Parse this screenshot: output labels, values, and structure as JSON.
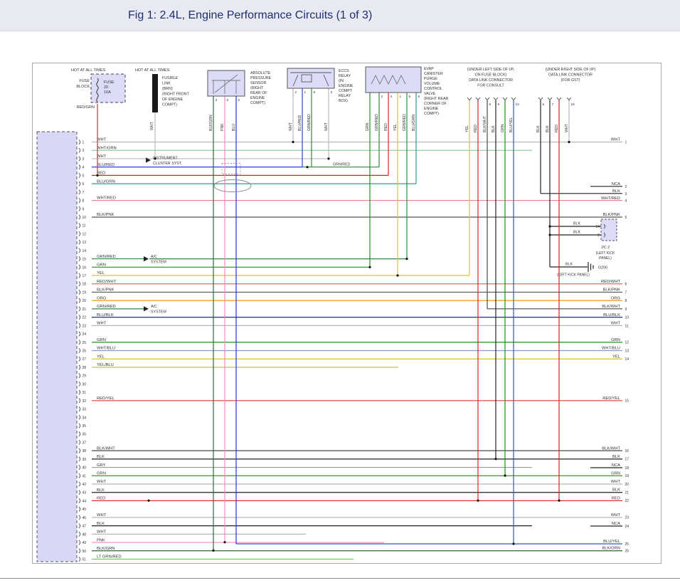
{
  "header": {
    "title": "Fig 1: 2.4L, Engine Performance Circuits (1 of 3)"
  },
  "wire_colors": {
    "WHT": "#b8b8b8",
    "WHT/GRN": "#9ccc9c",
    "WHT/RED": "#d98989",
    "WHT/BLU": "#8899dd",
    "BLU": "#2233dd",
    "BLU/RED": "#3344cc",
    "BLU/GRN": "#2a9d8f",
    "BLU/BLK": "#2a2a99",
    "BLU/YEL": "#3355cc",
    "RED": "#dd2222",
    "RED/WHT": "#e06666",
    "RED/YEL": "#dd4433",
    "RED/GRN": "#cc3333",
    "GRN": "#1f8f1f",
    "GRN/RED": "#2e8b3a",
    "LT GRN/RED": "#66cc66",
    "YEL": "#ddcc00",
    "YEL/BLU": "#bdbd44",
    "BLK": "#222222",
    "BLK/PNK": "#555555",
    "BLK/WHT": "#4a4a4a",
    "BLK/GRN": "#336633",
    "GRY": "#999999",
    "PNK": "#ee88bb",
    "ORG": "#e69500",
    "NCA": "#222222"
  },
  "labels": {
    "hot": "HOT AT ALL TIMES",
    "fuse_block_lines": [
      "FUSE",
      "BLOCK"
    ],
    "fuse_lines": [
      "FUSE",
      "20",
      "10A"
    ],
    "fuse_wire": "RED/GRN",
    "fusible_link_lines": [
      "FUSIBLE",
      "LINK",
      "(BRN)",
      "(RIGHT FRONT",
      "OF ENGINE",
      "COMPT)"
    ],
    "fusible_wire": "WHT",
    "instrument_lines": [
      "INSTRUMENT",
      "CLUSTER SYST."
    ],
    "ac_lines": [
      "A/C",
      "SYSTEM"
    ],
    "sensor_lines": [
      "ABSOLUTE",
      "PRESSURE",
      "SENSOR",
      "(RIGHT",
      "REAR OF",
      "ENGINE",
      "COMPT)"
    ],
    "relay_lines": [
      "ECCS",
      "RELAY",
      "(IN",
      "ENGINE",
      "COMPT",
      "RELAY",
      "BOX)"
    ],
    "evap_lines": [
      "EVAP",
      "CANISTER",
      "PURGE",
      "VOLUME",
      "CONTROL",
      "VALVE",
      "(RIGHT REAR",
      "CORNER OF",
      "ENGINE",
      "COMPT)"
    ],
    "consult_lines": [
      "(UNDER LEFT SIDE OF I/P,",
      "ON FUSE BLOCK)",
      "DATA LINK CONNECTOR",
      "FOR CONSULT"
    ],
    "gst_lines": [
      "(UNDER RIGHT SIDE OF I/P)",
      "DATA LINK CONNECTOR",
      "(FOR GST)"
    ],
    "inline_grn_red": "GRN/RED",
    "jc2": {
      "wire_top": "BLK",
      "pin_top": "14",
      "wire_bot": "BLK",
      "pin_bot": "2",
      "name": "J/C 2",
      "location_lines": [
        "(LEFT KICK",
        "PANEL)"
      ]
    },
    "ground": {
      "wire": "BLK",
      "name": "G200",
      "location": "(LEFT KICK PANEL)"
    }
  },
  "left_connector": {
    "pins": [
      {
        "n": "1",
        "label": "WHT"
      },
      {
        "n": "2",
        "label": "WHT/GRN"
      },
      {
        "n": "3",
        "label": "WHT"
      },
      {
        "n": "4",
        "label": "BLU/RED"
      },
      {
        "n": "5",
        "label": "RED"
      },
      {
        "n": "6",
        "label": "BLU/GRN"
      },
      {
        "n": "7",
        "label": ""
      },
      {
        "n": "8",
        "label": "WHT/RED"
      },
      {
        "n": "9",
        "label": ""
      },
      {
        "n": "10",
        "label": "BLK/PNK"
      },
      {
        "n": "11",
        "label": ""
      },
      {
        "n": "12",
        "label": ""
      },
      {
        "n": "13",
        "label": ""
      },
      {
        "n": "14",
        "label": ""
      },
      {
        "n": "15",
        "label": "GRN/RED"
      },
      {
        "n": "16",
        "label": "GRN"
      },
      {
        "n": "17",
        "label": "YEL"
      },
      {
        "n": "18",
        "label": "RED/WHT"
      },
      {
        "n": "19",
        "label": "BLK/PNK"
      },
      {
        "n": "20",
        "label": "ORG"
      },
      {
        "n": "21",
        "label": "GRN/RED"
      },
      {
        "n": "22",
        "label": "BLU/BLK"
      },
      {
        "n": "23",
        "label": "WHT"
      },
      {
        "n": "24",
        "label": ""
      },
      {
        "n": "25",
        "label": "GRN"
      },
      {
        "n": "26",
        "label": "WHT/BLU"
      },
      {
        "n": "27",
        "label": "YEL"
      },
      {
        "n": "28",
        "label": "YEL/BLU"
      },
      {
        "n": "29",
        "label": ""
      },
      {
        "n": "30",
        "label": ""
      },
      {
        "n": "31",
        "label": ""
      },
      {
        "n": "32",
        "label": "RED/YEL"
      },
      {
        "n": "33",
        "label": ""
      },
      {
        "n": "34",
        "label": ""
      },
      {
        "n": "35",
        "label": ""
      },
      {
        "n": "36",
        "label": ""
      },
      {
        "n": "37",
        "label": ""
      },
      {
        "n": "38",
        "label": "BLK/WHT"
      },
      {
        "n": "39",
        "label": "BLK"
      },
      {
        "n": "40",
        "label": "GRY"
      },
      {
        "n": "41",
        "label": "GRN"
      },
      {
        "n": "42",
        "label": "WHT"
      },
      {
        "n": "43",
        "label": "BLK"
      },
      {
        "n": "44",
        "label": "RED"
      },
      {
        "n": "45",
        "label": ""
      },
      {
        "n": "46",
        "label": "WHT"
      },
      {
        "n": "47",
        "label": "BLK"
      },
      {
        "n": "48",
        "label": "WHT"
      },
      {
        "n": "49",
        "label": "PNK"
      },
      {
        "n": "50",
        "label": "BLK/GRN"
      },
      {
        "n": "51",
        "label": "LT GRN/RED"
      }
    ]
  },
  "right_connector": {
    "pins": [
      {
        "n": "1",
        "label": "WHT"
      },
      {
        "n": "2",
        "label": "NCA"
      },
      {
        "n": "3",
        "label": "BLK"
      },
      {
        "n": "4",
        "label": "WHT/RED"
      },
      {
        "n": "5",
        "label": "BLK/PNK"
      },
      {
        "n": "6",
        "label": "RED/WHT"
      },
      {
        "n": "7",
        "label": "BLK/PNK"
      },
      {
        "n": "8",
        "label": "ORG"
      },
      {
        "n": "9",
        "label": "BLK/WHT"
      },
      {
        "n": "10",
        "label": "BLU/BLK"
      },
      {
        "n": "11",
        "label": "WHT"
      },
      {
        "n": "12",
        "label": "GRN"
      },
      {
        "n": "13",
        "label": "WHT/BLU"
      },
      {
        "n": "14",
        "label": "YEL"
      },
      {
        "n": "15",
        "label": "RED/YEL"
      },
      {
        "n": "16",
        "label": "BLK/WHT"
      },
      {
        "n": "17",
        "label": "BLK"
      },
      {
        "n": "18",
        "label": "NCA"
      },
      {
        "n": "19",
        "label": "GRN"
      },
      {
        "n": "20",
        "label": "WHT"
      },
      {
        "n": "21",
        "label": "BLK"
      },
      {
        "n": "22",
        "label": "RED"
      },
      {
        "n": "23",
        "label": "WHT"
      },
      {
        "n": "24",
        "label": "NCA"
      },
      {
        "n": "25",
        "label": "BLU/YEL"
      },
      {
        "n": "26",
        "label": "BLK/GRN"
      }
    ]
  },
  "top_drops": {
    "sensor": {
      "wires": [
        "BLK/GRN",
        "PNK",
        "BLU"
      ],
      "pins": [
        "3",
        "2",
        "2"
      ]
    },
    "relay": {
      "wires": [
        "WHT",
        "BLU/RED",
        "GRN/RED",
        "WHT"
      ],
      "pins": [
        "2",
        "1",
        "6",
        "3"
      ]
    },
    "evap": {
      "wires": [
        "GRN",
        "GRN/RED",
        "RED",
        "YEL",
        "GRN/RED",
        "BLU/GRN"
      ],
      "pins": [
        "",
        "2",
        "4",
        "1",
        "5",
        "6"
      ]
    },
    "consult": {
      "wires": [
        "YEL",
        "RED",
        "BLK/WHT",
        "BLK",
        "GRN",
        "BLU/YEL"
      ],
      "pins": [
        "",
        "",
        "8",
        "9",
        "",
        "13"
      ]
    },
    "gst": {
      "wires": [
        "BLK",
        "BLK",
        "RED",
        "WHT"
      ],
      "pins": [
        "5",
        "7",
        "",
        "16"
      ]
    }
  }
}
